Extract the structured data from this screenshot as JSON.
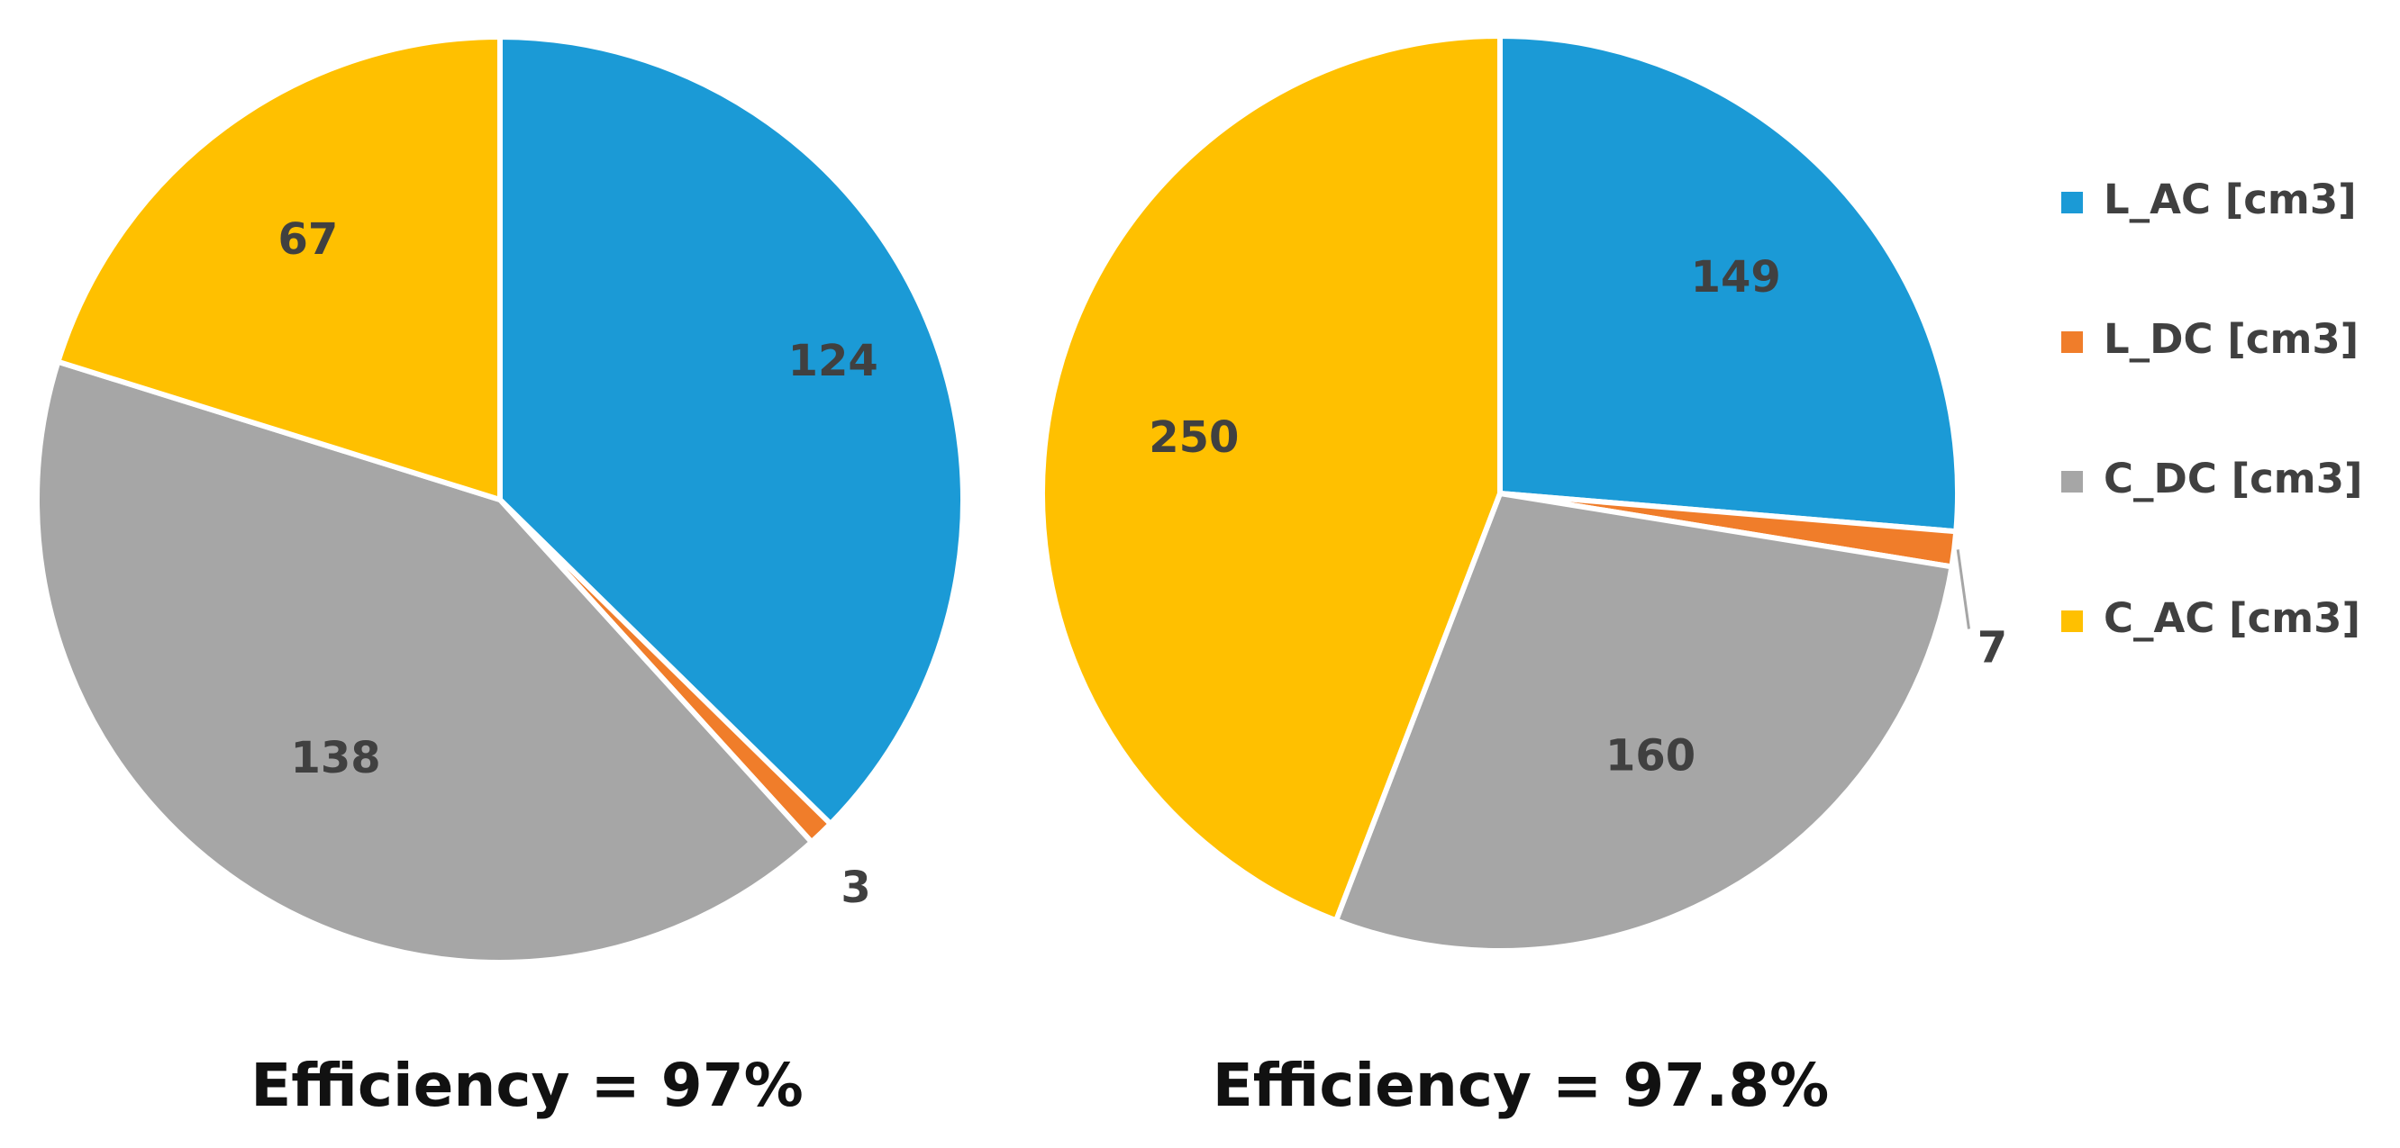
{
  "chart_data": [
    {
      "type": "pie",
      "caption": "Efficiency = 97%",
      "categories": [
        "L_AC [cm3]",
        "L_DC [cm3]",
        "C_DC [cm3]",
        "C_AC [cm3]"
      ],
      "values": [
        124,
        3,
        138,
        67
      ],
      "colors": [
        "#1B9AD6",
        "#F07D2A",
        "#A6A6A6",
        "#FFC000"
      ],
      "data_labels": [
        "124",
        "3",
        "138",
        "67"
      ]
    },
    {
      "type": "pie",
      "caption": "Efficiency = 97.8%",
      "categories": [
        "L_AC [cm3]",
        "L_DC [cm3]",
        "C_DC [cm3]",
        "C_AC [cm3]"
      ],
      "values": [
        149,
        7,
        160,
        250
      ],
      "colors": [
        "#1B9AD6",
        "#F07D2A",
        "#A6A6A6",
        "#FFC000"
      ],
      "data_labels": [
        "149",
        "7",
        "160",
        "250"
      ]
    }
  ],
  "legend": {
    "placement": "right",
    "items": [
      {
        "label": "L_AC [cm3]",
        "color": "#1B9AD6"
      },
      {
        "label": "L_DC [cm3]",
        "color": "#F07D2A"
      },
      {
        "label": "C_DC [cm3]",
        "color": "#A6A6A6"
      },
      {
        "label": "C_AC [cm3]",
        "color": "#FFC000"
      }
    ]
  }
}
